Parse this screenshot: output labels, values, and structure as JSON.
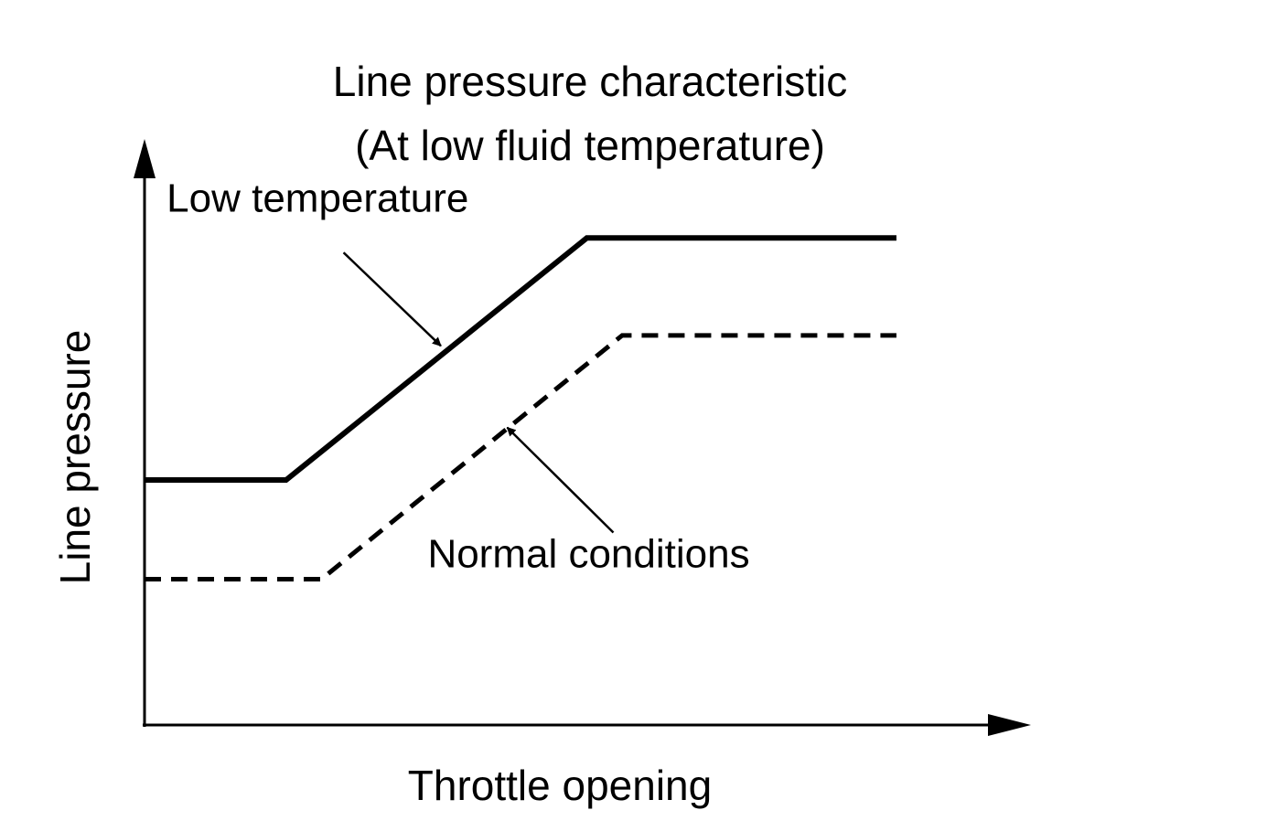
{
  "chart_data": {
    "type": "line",
    "title": [
      "Line pressure characteristic",
      "(At low fluid temperature)"
    ],
    "xlabel": "Throttle opening",
    "ylabel": "Line pressure",
    "xlim": [
      0,
      100
    ],
    "ylim": [
      0,
      100
    ],
    "grid": false,
    "ticks": "none",
    "series": [
      {
        "name": "Low temperature",
        "style": "solid",
        "color": "#000000",
        "x": [
          0,
          16,
          50,
          85
        ],
        "y": [
          42,
          42,
          83.5,
          83.5
        ]
      },
      {
        "name": "Normal conditions",
        "style": "dashed",
        "color": "#000000",
        "x": [
          0,
          20,
          54,
          85
        ],
        "y": [
          25,
          25,
          66.8,
          66.8
        ]
      }
    ],
    "annotations": [
      {
        "text": "Low temperature",
        "series": "Low temperature",
        "text_pos": [
          2.5,
          88
        ],
        "from": [
          22.5,
          81
        ],
        "to": [
          33.5,
          65
        ]
      },
      {
        "text": "Normal conditions",
        "series": "Normal conditions",
        "text_pos": [
          32,
          27
        ],
        "from": [
          53,
          33
        ],
        "to": [
          41,
          51
        ]
      }
    ]
  }
}
